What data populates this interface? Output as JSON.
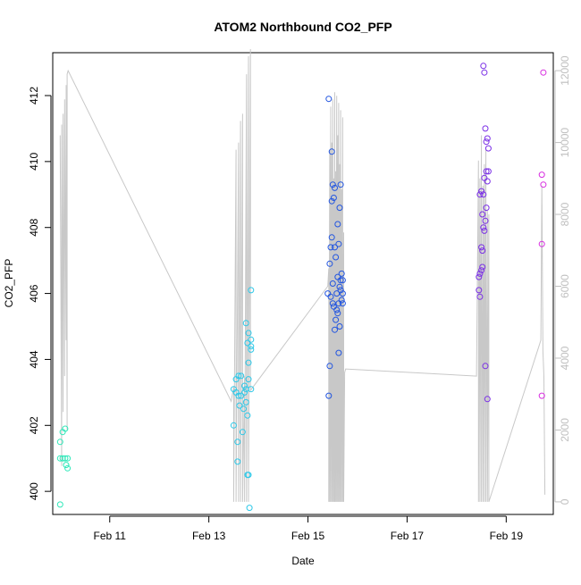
{
  "chart_data": {
    "type": "scatter",
    "title": "ATOM2 Northbound CO2_PFP",
    "xlabel": "Date",
    "ylabel": "CO2_PFP",
    "x_ticks": [
      {
        "value": 11,
        "label": "Feb 11"
      },
      {
        "value": 13,
        "label": "Feb 13"
      },
      {
        "value": 15,
        "label": "Feb 15"
      },
      {
        "value": 17,
        "label": "Feb 17"
      },
      {
        "value": 19,
        "label": "Feb 19"
      }
    ],
    "xlim": [
      9.85,
      19.95
    ],
    "y_ticks": [
      400,
      402,
      404,
      406,
      408,
      410,
      412
    ],
    "ylim": [
      399.3,
      413.3
    ],
    "y2_ticks": [
      0,
      2000,
      4000,
      6000,
      8000,
      10000,
      12000
    ],
    "y2lim": [
      -350,
      12500
    ],
    "colors": {
      "altitude_line": "#c8c8c8",
      "axis": "#000000",
      "y2_axis": "#bfbfbf"
    },
    "points": [
      {
        "x": 10.0,
        "y": 399.6,
        "color": "#2ee8b9"
      },
      {
        "x": 10.0,
        "y": 401.5,
        "color": "#2ee8b9"
      },
      {
        "x": 10.0,
        "y": 401.0,
        "color": "#2ee8b9"
      },
      {
        "x": 10.05,
        "y": 401.8,
        "color": "#2ee8b9"
      },
      {
        "x": 10.05,
        "y": 401.0,
        "color": "#2ee8b9"
      },
      {
        "x": 10.1,
        "y": 401.9,
        "color": "#2ee8b9"
      },
      {
        "x": 10.1,
        "y": 401.0,
        "color": "#2ee8b9"
      },
      {
        "x": 10.12,
        "y": 400.8,
        "color": "#2ee8b9"
      },
      {
        "x": 10.15,
        "y": 401.0,
        "color": "#2ee8b9"
      },
      {
        "x": 10.15,
        "y": 400.7,
        "color": "#2ee8b9"
      },
      {
        "x": 13.5,
        "y": 403.1,
        "color": "#2cc8e8"
      },
      {
        "x": 13.5,
        "y": 402.0,
        "color": "#2cc8e8"
      },
      {
        "x": 13.55,
        "y": 403.4,
        "color": "#2cc8e8"
      },
      {
        "x": 13.55,
        "y": 403.0,
        "color": "#2cc8e8"
      },
      {
        "x": 13.58,
        "y": 401.5,
        "color": "#2cc8e8"
      },
      {
        "x": 13.58,
        "y": 400.9,
        "color": "#2cc8e8"
      },
      {
        "x": 13.6,
        "y": 403.5,
        "color": "#2cc8e8"
      },
      {
        "x": 13.6,
        "y": 402.9,
        "color": "#2cc8e8"
      },
      {
        "x": 13.62,
        "y": 402.6,
        "color": "#2cc8e8"
      },
      {
        "x": 13.65,
        "y": 403.5,
        "color": "#2cc8e8"
      },
      {
        "x": 13.65,
        "y": 402.9,
        "color": "#2cc8e8"
      },
      {
        "x": 13.68,
        "y": 401.8,
        "color": "#2cc8e8"
      },
      {
        "x": 13.7,
        "y": 402.5,
        "color": "#2cc8e8"
      },
      {
        "x": 13.72,
        "y": 403.2,
        "color": "#2cc8e8"
      },
      {
        "x": 13.72,
        "y": 403.0,
        "color": "#2cc8e8"
      },
      {
        "x": 13.75,
        "y": 405.1,
        "color": "#2cc8e8"
      },
      {
        "x": 13.75,
        "y": 403.1,
        "color": "#2cc8e8"
      },
      {
        "x": 13.75,
        "y": 402.7,
        "color": "#2cc8e8"
      },
      {
        "x": 13.78,
        "y": 404.5,
        "color": "#2cc8e8"
      },
      {
        "x": 13.78,
        "y": 402.3,
        "color": "#2cc8e8"
      },
      {
        "x": 13.78,
        "y": 400.5,
        "color": "#2cc8e8"
      },
      {
        "x": 13.8,
        "y": 404.8,
        "color": "#2cc8e8"
      },
      {
        "x": 13.8,
        "y": 403.9,
        "color": "#2cc8e8"
      },
      {
        "x": 13.8,
        "y": 403.4,
        "color": "#2cc8e8"
      },
      {
        "x": 13.8,
        "y": 400.5,
        "color": "#2cc8e8"
      },
      {
        "x": 13.82,
        "y": 399.5,
        "color": "#2cc8e8"
      },
      {
        "x": 13.85,
        "y": 406.1,
        "color": "#2cc8e8"
      },
      {
        "x": 13.85,
        "y": 404.6,
        "color": "#2cc8e8"
      },
      {
        "x": 13.85,
        "y": 404.4,
        "color": "#2cc8e8"
      },
      {
        "x": 13.85,
        "y": 404.3,
        "color": "#2cc8e8"
      },
      {
        "x": 13.85,
        "y": 403.1,
        "color": "#2cc8e8"
      },
      {
        "x": 15.4,
        "y": 406.0,
        "color": "#2255e0"
      },
      {
        "x": 15.42,
        "y": 411.9,
        "color": "#2255e0"
      },
      {
        "x": 15.42,
        "y": 402.9,
        "color": "#2255e0"
      },
      {
        "x": 15.44,
        "y": 406.9,
        "color": "#2255e0"
      },
      {
        "x": 15.44,
        "y": 403.8,
        "color": "#2255e0"
      },
      {
        "x": 15.46,
        "y": 407.4,
        "color": "#2255e0"
      },
      {
        "x": 15.46,
        "y": 405.9,
        "color": "#2255e0"
      },
      {
        "x": 15.48,
        "y": 410.3,
        "color": "#2255e0"
      },
      {
        "x": 15.48,
        "y": 408.8,
        "color": "#2255e0"
      },
      {
        "x": 15.48,
        "y": 407.7,
        "color": "#2255e0"
      },
      {
        "x": 15.5,
        "y": 409.3,
        "color": "#2255e0"
      },
      {
        "x": 15.5,
        "y": 406.3,
        "color": "#2255e0"
      },
      {
        "x": 15.5,
        "y": 405.7,
        "color": "#2255e0"
      },
      {
        "x": 15.52,
        "y": 408.9,
        "color": "#2255e0"
      },
      {
        "x": 15.52,
        "y": 405.6,
        "color": "#2255e0"
      },
      {
        "x": 15.54,
        "y": 409.2,
        "color": "#2255e0"
      },
      {
        "x": 15.54,
        "y": 407.4,
        "color": "#2255e0"
      },
      {
        "x": 15.54,
        "y": 404.9,
        "color": "#2255e0"
      },
      {
        "x": 15.56,
        "y": 407.1,
        "color": "#2255e0"
      },
      {
        "x": 15.56,
        "y": 405.2,
        "color": "#2255e0"
      },
      {
        "x": 15.58,
        "y": 406.0,
        "color": "#2255e0"
      },
      {
        "x": 15.58,
        "y": 405.5,
        "color": "#2255e0"
      },
      {
        "x": 15.6,
        "y": 408.1,
        "color": "#2255e0"
      },
      {
        "x": 15.6,
        "y": 406.5,
        "color": "#2255e0"
      },
      {
        "x": 15.6,
        "y": 405.4,
        "color": "#2255e0"
      },
      {
        "x": 15.62,
        "y": 407.5,
        "color": "#2255e0"
      },
      {
        "x": 15.62,
        "y": 405.7,
        "color": "#2255e0"
      },
      {
        "x": 15.62,
        "y": 404.2,
        "color": "#2255e0"
      },
      {
        "x": 15.64,
        "y": 408.6,
        "color": "#2255e0"
      },
      {
        "x": 15.64,
        "y": 406.2,
        "color": "#2255e0"
      },
      {
        "x": 15.64,
        "y": 405.0,
        "color": "#2255e0"
      },
      {
        "x": 15.66,
        "y": 409.3,
        "color": "#2255e0"
      },
      {
        "x": 15.66,
        "y": 406.4,
        "color": "#2255e0"
      },
      {
        "x": 15.66,
        "y": 406.1,
        "color": "#2255e0"
      },
      {
        "x": 15.68,
        "y": 406.6,
        "color": "#2255e0"
      },
      {
        "x": 15.68,
        "y": 405.8,
        "color": "#2255e0"
      },
      {
        "x": 15.7,
        "y": 406.4,
        "color": "#2255e0"
      },
      {
        "x": 15.7,
        "y": 406.0,
        "color": "#2255e0"
      },
      {
        "x": 15.7,
        "y": 405.7,
        "color": "#2255e0"
      },
      {
        "x": 18.45,
        "y": 406.5,
        "color": "#7a2ee6"
      },
      {
        "x": 18.45,
        "y": 406.1,
        "color": "#7a2ee6"
      },
      {
        "x": 18.47,
        "y": 409.0,
        "color": "#7a2ee6"
      },
      {
        "x": 18.47,
        "y": 406.6,
        "color": "#7a2ee6"
      },
      {
        "x": 18.47,
        "y": 405.9,
        "color": "#7a2ee6"
      },
      {
        "x": 18.5,
        "y": 409.1,
        "color": "#7a2ee6"
      },
      {
        "x": 18.5,
        "y": 407.4,
        "color": "#7a2ee6"
      },
      {
        "x": 18.5,
        "y": 406.7,
        "color": "#7a2ee6"
      },
      {
        "x": 18.52,
        "y": 408.4,
        "color": "#7a2ee6"
      },
      {
        "x": 18.52,
        "y": 407.3,
        "color": "#7a2ee6"
      },
      {
        "x": 18.52,
        "y": 406.8,
        "color": "#7a2ee6"
      },
      {
        "x": 18.54,
        "y": 412.9,
        "color": "#7a2ee6"
      },
      {
        "x": 18.54,
        "y": 409.0,
        "color": "#7a2ee6"
      },
      {
        "x": 18.54,
        "y": 408.0,
        "color": "#7a2ee6"
      },
      {
        "x": 18.56,
        "y": 412.7,
        "color": "#7a2ee6"
      },
      {
        "x": 18.56,
        "y": 409.5,
        "color": "#7a2ee6"
      },
      {
        "x": 18.56,
        "y": 407.9,
        "color": "#7a2ee6"
      },
      {
        "x": 18.58,
        "y": 411.0,
        "color": "#7a2ee6"
      },
      {
        "x": 18.58,
        "y": 408.2,
        "color": "#7a2ee6"
      },
      {
        "x": 18.58,
        "y": 403.8,
        "color": "#7a2ee6"
      },
      {
        "x": 18.6,
        "y": 410.6,
        "color": "#7a2ee6"
      },
      {
        "x": 18.6,
        "y": 409.7,
        "color": "#7a2ee6"
      },
      {
        "x": 18.6,
        "y": 408.6,
        "color": "#7a2ee6"
      },
      {
        "x": 18.62,
        "y": 410.7,
        "color": "#7a2ee6"
      },
      {
        "x": 18.62,
        "y": 409.4,
        "color": "#7a2ee6"
      },
      {
        "x": 18.62,
        "y": 402.8,
        "color": "#7a2ee6"
      },
      {
        "x": 18.64,
        "y": 410.4,
        "color": "#7a2ee6"
      },
      {
        "x": 18.64,
        "y": 409.7,
        "color": "#7a2ee6"
      },
      {
        "x": 19.72,
        "y": 409.6,
        "color": "#d82ee0"
      },
      {
        "x": 19.72,
        "y": 407.5,
        "color": "#d82ee0"
      },
      {
        "x": 19.72,
        "y": 402.9,
        "color": "#d82ee0"
      },
      {
        "x": 19.75,
        "y": 412.7,
        "color": "#d82ee0"
      },
      {
        "x": 19.75,
        "y": 409.3,
        "color": "#d82ee0"
      }
    ],
    "altitude_line": {
      "x": [
        10.0,
        10.03,
        10.03,
        10.06,
        10.06,
        10.09,
        10.09,
        10.12,
        10.12,
        10.14,
        10.14,
        10.16,
        13.45,
        13.5,
        13.5,
        13.55,
        13.55,
        13.6,
        13.6,
        13.64,
        13.64,
        13.68,
        13.68,
        13.72,
        13.72,
        13.76,
        13.76,
        13.8,
        13.8,
        13.84,
        13.84,
        15.4,
        15.42,
        15.42,
        15.44,
        15.44,
        15.46,
        15.46,
        15.48,
        15.48,
        15.5,
        15.5,
        15.52,
        15.52,
        15.54,
        15.54,
        15.56,
        15.56,
        15.58,
        15.58,
        15.6,
        15.6,
        15.62,
        15.62,
        15.64,
        15.64,
        15.66,
        15.66,
        15.68,
        15.68,
        15.7,
        15.7,
        15.72,
        15.72,
        15.74,
        15.76,
        18.4,
        18.44,
        18.44,
        18.47,
        18.47,
        18.5,
        18.5,
        18.53,
        18.53,
        18.56,
        18.56,
        18.59,
        18.59,
        18.62,
        18.62,
        18.65,
        18.65,
        19.7,
        19.72,
        19.74,
        19.76,
        19.78
      ],
      "alt": [
        10200,
        1000,
        10500,
        2500,
        10800,
        3500,
        11200,
        4500,
        11600,
        2000,
        11900,
        12000,
        2800,
        3200,
        0,
        9800,
        0,
        10000,
        0,
        10600,
        0,
        10800,
        0,
        3500,
        0,
        11900,
        0,
        12400,
        0,
        12600,
        3100,
        6000,
        6500,
        0,
        9800,
        0,
        11000,
        0,
        10000,
        0,
        11200,
        0,
        9000,
        0,
        11400,
        0,
        9200,
        0,
        11300,
        0,
        10200,
        0,
        11100,
        0,
        9400,
        0,
        10900,
        0,
        8700,
        0,
        10700,
        0,
        7500,
        0,
        3600,
        3700,
        3500,
        9500,
        0,
        9000,
        0,
        10200,
        0,
        8800,
        0,
        9400,
        0,
        9800,
        0,
        8100,
        0,
        8000,
        0,
        4500,
        8800,
        4200,
        3500,
        200
      ]
    }
  }
}
